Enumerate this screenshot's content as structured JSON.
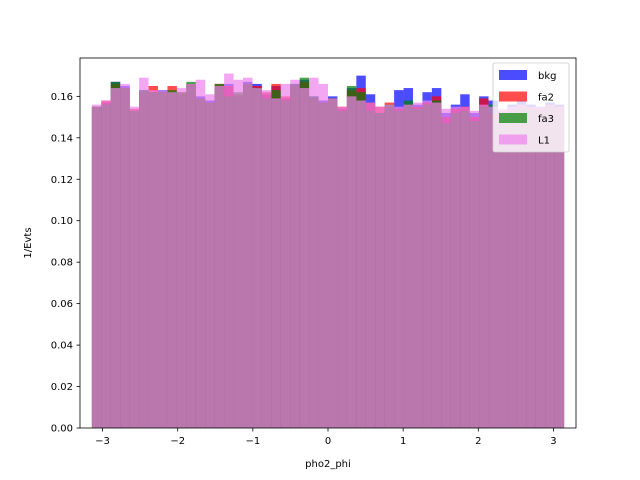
{
  "chart_data": {
    "type": "bar",
    "title": "",
    "xlabel": "pho2_phi",
    "ylabel": "1/Evts",
    "xlim": [
      -3.3,
      3.3
    ],
    "ylim": [
      0.0,
      0.1785
    ],
    "xticks": [
      -3,
      -2,
      -1,
      0,
      1,
      2,
      3
    ],
    "xtick_labels": [
      "−3",
      "−2",
      "−1",
      "0",
      "1",
      "2",
      "3"
    ],
    "yticks": [
      0.0,
      0.02,
      0.04,
      0.06,
      0.08,
      0.1,
      0.12,
      0.14,
      0.16
    ],
    "ytick_labels": [
      "0.00",
      "0.02",
      "0.04",
      "0.06",
      "0.08",
      "0.10",
      "0.12",
      "0.14",
      "0.16"
    ],
    "grid": false,
    "legend_position": "top-right",
    "bin_range": [
      -3.1416,
      3.1416
    ],
    "n_bins": 50,
    "series": [
      {
        "name": "bkg",
        "color": "#0000ff",
        "alpha": 0.7,
        "values": [
          0.155,
          0.157,
          0.167,
          0.165,
          0.153,
          0.163,
          0.162,
          0.163,
          0.162,
          0.161,
          0.166,
          0.16,
          0.158,
          0.165,
          0.166,
          0.16,
          0.167,
          0.166,
          0.161,
          0.165,
          0.159,
          0.166,
          0.168,
          0.16,
          0.158,
          0.16,
          0.154,
          0.164,
          0.17,
          0.161,
          0.152,
          0.155,
          0.163,
          0.164,
          0.156,
          0.162,
          0.164,
          0.152,
          0.156,
          0.161,
          0.152,
          0.16,
          0.158,
          0.152,
          0.156,
          0.158,
          0.156,
          0.155,
          0.157,
          0.156
        ]
      },
      {
        "name": "fa2",
        "color": "#ff0000",
        "alpha": 0.7,
        "values": [
          0.155,
          0.158,
          0.166,
          0.164,
          0.154,
          0.162,
          0.165,
          0.162,
          0.165,
          0.162,
          0.166,
          0.159,
          0.157,
          0.166,
          0.165,
          0.161,
          0.166,
          0.165,
          0.162,
          0.166,
          0.16,
          0.165,
          0.167,
          0.159,
          0.157,
          0.159,
          0.155,
          0.163,
          0.164,
          0.157,
          0.155,
          0.157,
          0.154,
          0.156,
          0.155,
          0.157,
          0.16,
          0.15,
          0.154,
          0.155,
          0.15,
          0.159,
          0.152,
          0.153,
          0.154,
          0.156,
          0.155,
          0.154,
          0.156,
          0.155
        ]
      },
      {
        "name": "fa3",
        "color": "#008000",
        "alpha": 0.7,
        "values": [
          0.155,
          0.156,
          0.167,
          0.164,
          0.153,
          0.163,
          0.162,
          0.162,
          0.163,
          0.162,
          0.167,
          0.159,
          0.157,
          0.166,
          0.16,
          0.162,
          0.166,
          0.164,
          0.159,
          0.163,
          0.158,
          0.166,
          0.169,
          0.16,
          0.157,
          0.159,
          0.153,
          0.165,
          0.162,
          0.153,
          0.152,
          0.156,
          0.153,
          0.158,
          0.154,
          0.156,
          0.158,
          0.147,
          0.152,
          0.153,
          0.148,
          0.155,
          0.156,
          0.151,
          0.153,
          0.155,
          0.154,
          0.153,
          0.155,
          0.154
        ]
      },
      {
        "name": "L1",
        "color": "#ee82ee",
        "alpha": 0.7,
        "values": [
          0.156,
          0.158,
          0.164,
          0.166,
          0.155,
          0.169,
          0.163,
          0.163,
          0.162,
          0.164,
          0.166,
          0.168,
          0.161,
          0.165,
          0.171,
          0.168,
          0.169,
          0.164,
          0.163,
          0.159,
          0.166,
          0.168,
          0.164,
          0.169,
          0.166,
          0.159,
          0.155,
          0.16,
          0.158,
          0.157,
          0.155,
          0.156,
          0.155,
          0.156,
          0.157,
          0.158,
          0.157,
          0.154,
          0.155,
          0.155,
          0.153,
          0.156,
          0.155,
          0.154,
          0.155,
          0.156,
          0.155,
          0.155,
          0.156,
          0.155
        ]
      }
    ]
  }
}
